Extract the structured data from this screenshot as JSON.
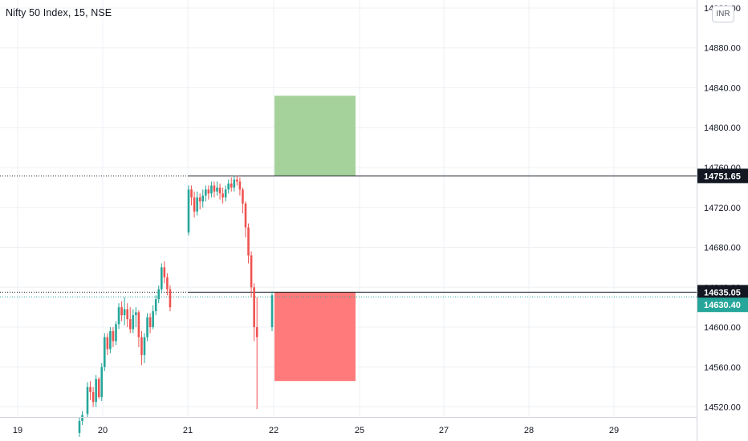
{
  "header": {
    "title": "Nifty 50 Index, 15, NSE",
    "currency": "INR"
  },
  "colors": {
    "up": "#26a69a",
    "down": "#ef5350",
    "target_zone": "#a5d29a",
    "stop_zone": "#ff7b7b",
    "last_price_tag": "#26a69a",
    "level_tag": "#131722"
  },
  "chart_data": {
    "type": "candlestick",
    "title": "Nifty 50 Index, 15, NSE",
    "x_ticks": [
      "19",
      "20",
      "21",
      "22",
      "25",
      "27",
      "28",
      "29"
    ],
    "y_ticks": [
      "14520.00",
      "14560.00",
      "14600.00",
      "14640.00",
      "14680.00",
      "14720.00",
      "14760.00",
      "14800.00",
      "14840.00",
      "14880.00",
      "14920.00"
    ],
    "ylim": [
      14510,
      14928
    ],
    "grid": true,
    "levels": [
      {
        "label": "14751.65",
        "value": 14751.65,
        "style": "solid"
      },
      {
        "label": "14635.05",
        "value": 14635.05,
        "style": "solid"
      }
    ],
    "last_price": {
      "label": "14630.40",
      "value": 14630.4
    },
    "zones": [
      {
        "name": "target",
        "from": 14751.65,
        "to": 14832
      },
      {
        "name": "stop",
        "from": 14635.05,
        "to": 14546
      }
    ],
    "sessions": [
      {
        "label": "19",
        "candles": [
          [
            14494,
            14506,
            14490,
            14510
          ],
          [
            14506,
            14512,
            14502,
            14516
          ]
        ]
      },
      {
        "label": "20",
        "candles": [
          [
            14513,
            14540,
            14510,
            14545
          ],
          [
            14540,
            14535,
            14527,
            14546
          ],
          [
            14535,
            14525,
            14520,
            14540
          ],
          [
            14525,
            14548,
            14520,
            14552
          ],
          [
            14548,
            14530,
            14528,
            14550
          ],
          [
            14530,
            14560,
            14526,
            14564
          ],
          [
            14560,
            14590,
            14556,
            14594
          ],
          [
            14590,
            14578,
            14572,
            14594
          ],
          [
            14578,
            14596,
            14574,
            14600
          ],
          [
            14596,
            14586,
            14580,
            14600
          ],
          [
            14586,
            14603,
            14582,
            14606
          ],
          [
            14603,
            14620,
            14598,
            14624
          ],
          [
            14620,
            14612,
            14606,
            14626
          ],
          [
            14612,
            14618,
            14602,
            14630
          ],
          [
            14618,
            14608,
            14600,
            14624
          ],
          [
            14608,
            14598,
            14594,
            14620
          ],
          [
            14598,
            14612,
            14594,
            14618
          ],
          [
            14612,
            14615,
            14600,
            14620
          ],
          [
            14615,
            14590,
            14580,
            14617
          ],
          [
            14590,
            14572,
            14562,
            14596
          ],
          [
            14572,
            14590,
            14564,
            14594
          ],
          [
            14590,
            14610,
            14586,
            14614
          ],
          [
            14610,
            14600,
            14594,
            14614
          ],
          [
            14600,
            14616,
            14598,
            14622
          ],
          [
            14616,
            14628,
            14612,
            14632
          ],
          [
            14628,
            14638,
            14624,
            14642
          ],
          [
            14638,
            14660,
            14634,
            14664
          ],
          [
            14660,
            14650,
            14644,
            14666
          ],
          [
            14650,
            14638,
            14632,
            14654
          ],
          [
            14638,
            14620,
            14616,
            14642
          ]
        ]
      },
      {
        "label": "21",
        "candles": [
          [
            14695,
            14738,
            14692,
            14742
          ],
          [
            14738,
            14730,
            14722,
            14742
          ],
          [
            14730,
            14716,
            14710,
            14736
          ],
          [
            14716,
            14730,
            14712,
            14736
          ],
          [
            14730,
            14726,
            14718,
            14734
          ],
          [
            14726,
            14732,
            14720,
            14738
          ],
          [
            14732,
            14738,
            14726,
            14742
          ],
          [
            14738,
            14734,
            14728,
            14742
          ],
          [
            14734,
            14742,
            14730,
            14746
          ],
          [
            14742,
            14736,
            14730,
            14746
          ],
          [
            14736,
            14740,
            14732,
            14746
          ],
          [
            14740,
            14734,
            14728,
            14744
          ],
          [
            14734,
            14730,
            14724,
            14740
          ],
          [
            14730,
            14738,
            14726,
            14742
          ],
          [
            14738,
            14744,
            14734,
            14748
          ],
          [
            14744,
            14740,
            14736,
            14750
          ],
          [
            14740,
            14748,
            14736,
            14752
          ],
          [
            14748,
            14746,
            14742,
            14752
          ],
          [
            14746,
            14738,
            14732,
            14750
          ],
          [
            14738,
            14724,
            14714,
            14740
          ],
          [
            14724,
            14700,
            14690,
            14726
          ],
          [
            14700,
            14672,
            14664,
            14704
          ],
          [
            14672,
            14640,
            14630,
            14676
          ],
          [
            14640,
            14600,
            14586,
            14644
          ],
          [
            14600,
            14590,
            14518,
            14630
          ]
        ]
      },
      {
        "label": "22",
        "candles": [
          [
            14600,
            14632,
            14596,
            14636
          ]
        ]
      },
      {
        "label": "25",
        "candles": []
      },
      {
        "label": "27",
        "candles": []
      },
      {
        "label": "28",
        "candles": []
      },
      {
        "label": "29",
        "candles": []
      }
    ]
  }
}
